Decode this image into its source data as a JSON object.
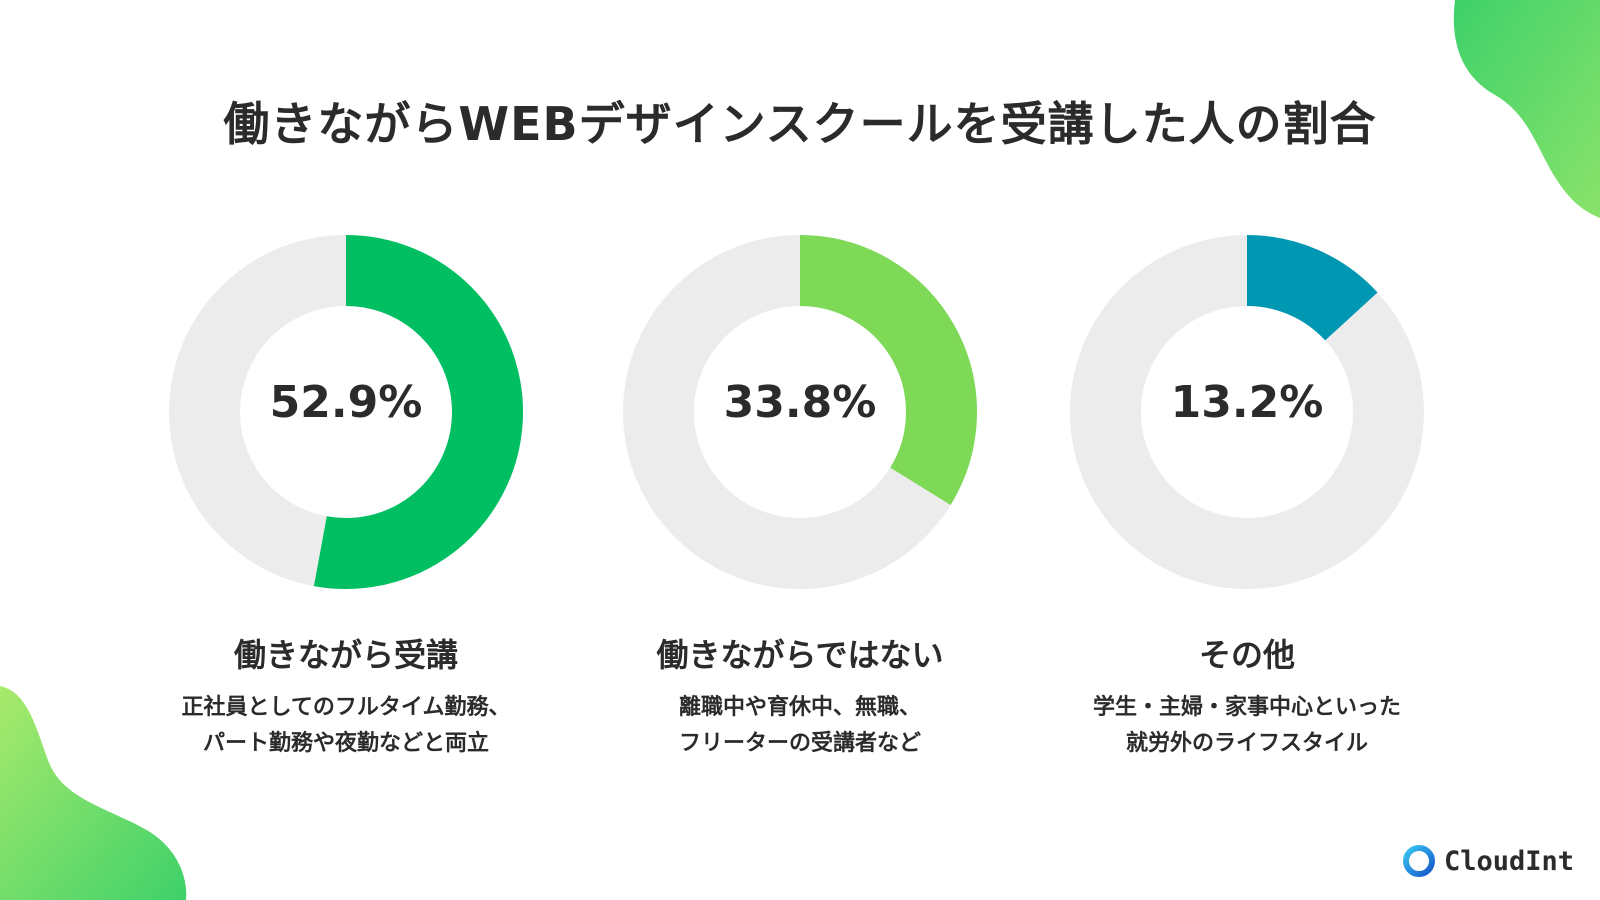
{
  "title": "働きながらWEBデザインスクールを受講した人の割合",
  "colors": {
    "track": "#ececec",
    "blob_top": "#56d860",
    "blob_bottom": "#8ee06a",
    "logo_ring": "#1a8fd6"
  },
  "chart_data": [
    {
      "type": "pie",
      "style": "donut",
      "value_percent": 52.9,
      "value_label": "52.9%",
      "color": "#00bf63",
      "label": "働きながら受講",
      "description": [
        "正社員としてのフルタイム勤務、",
        "パート勤務や夜勤などと両立"
      ]
    },
    {
      "type": "pie",
      "style": "donut",
      "value_percent": 33.8,
      "value_label": "33.8%",
      "color": "#7ed957",
      "label": "働きながらではない",
      "description": [
        "離職中や育休中、無職、",
        "フリーターの受講者など"
      ]
    },
    {
      "type": "pie",
      "style": "donut",
      "value_percent": 13.2,
      "value_label": "13.2%",
      "color": "#0097b2",
      "label": "その他",
      "description": [
        "学生・主婦・家事中心といった",
        "就労外のライフスタイル"
      ]
    }
  ],
  "logo": {
    "text": "CloudInt",
    "icon": "cloudint-ring-icon"
  }
}
